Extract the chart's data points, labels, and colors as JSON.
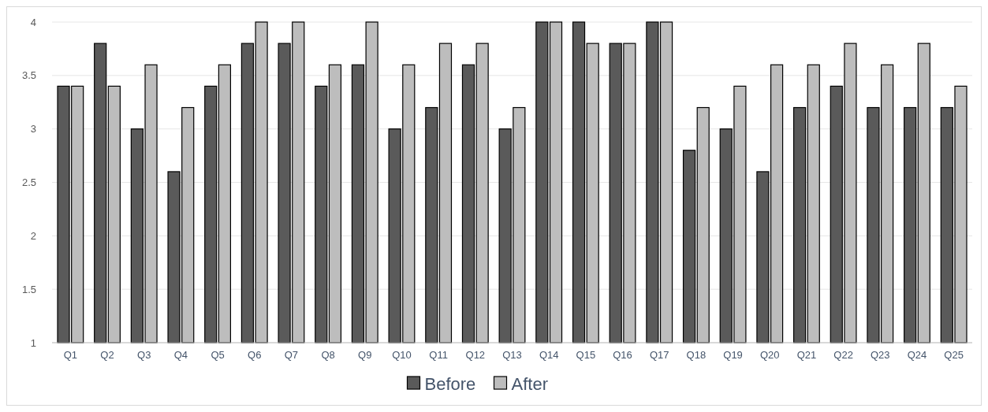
{
  "chart_data": {
    "type": "bar",
    "categories": [
      "Q1",
      "Q2",
      "Q3",
      "Q4",
      "Q5",
      "Q6",
      "Q7",
      "Q8",
      "Q9",
      "Q10",
      "Q11",
      "Q12",
      "Q13",
      "Q14",
      "Q15",
      "Q16",
      "Q17",
      "Q18",
      "Q19",
      "Q20",
      "Q21",
      "Q22",
      "Q23",
      "Q24",
      "Q25"
    ],
    "series": [
      {
        "name": "Before",
        "color": "#5a5a5a",
        "values": [
          3.4,
          3.8,
          3.0,
          2.6,
          3.4,
          3.8,
          3.8,
          3.4,
          3.6,
          3.0,
          3.2,
          3.6,
          3.0,
          4,
          4,
          3.8,
          4,
          2.8,
          3.0,
          2.6,
          3.2,
          3.4,
          3.2,
          3.2,
          3.2
        ]
      },
      {
        "name": "After",
        "color": "#bdbdbd",
        "values": [
          3.4,
          3.4,
          3.6,
          3.2,
          3.6,
          4,
          4,
          3.6,
          4,
          3.6,
          3.8,
          3.8,
          3.2,
          4,
          3.8,
          3.8,
          4,
          3.2,
          3.4,
          3.6,
          3.6,
          3.8,
          3.6,
          3.8,
          3.4
        ]
      }
    ],
    "ylim": [
      1,
      4
    ],
    "yticks": [
      1,
      1.5,
      2,
      2.5,
      3,
      3.5,
      4
    ],
    "grid": "y",
    "legend": "bottom"
  }
}
